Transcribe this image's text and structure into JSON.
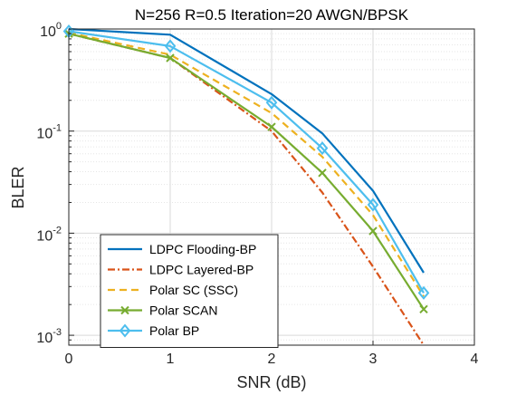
{
  "chart_data": {
    "type": "line",
    "title": "N=256 R=0.5 Iteration=20 AWGN/BPSK",
    "xlabel": "SNR (dB)",
    "ylabel": "BLER",
    "xlim": [
      0,
      4
    ],
    "ylim": [
      0.0008,
      1
    ],
    "yscale": "log",
    "grid": true,
    "legend_position": "bottom-left",
    "x_ticks": [
      {
        "value": 0,
        "label": "0"
      },
      {
        "value": 1,
        "label": "1"
      },
      {
        "value": 2,
        "label": "2"
      },
      {
        "value": 3,
        "label": "3"
      },
      {
        "value": 4,
        "label": "4"
      }
    ],
    "y_ticks": [
      {
        "value": 1,
        "base": "10",
        "exp": "0"
      },
      {
        "value": 0.1,
        "base": "10",
        "exp": "-1"
      },
      {
        "value": 0.01,
        "base": "10",
        "exp": "-2"
      },
      {
        "value": 0.001,
        "base": "10",
        "exp": "-3"
      }
    ],
    "series": [
      {
        "name": "LDPC Flooding-BP",
        "color": "#0072BD",
        "dash": "solid",
        "marker": "none",
        "x": [
          0,
          1,
          2,
          2.5,
          3,
          3.5
        ],
        "y": [
          1.0,
          0.88,
          0.23,
          0.095,
          0.026,
          0.0041
        ]
      },
      {
        "name": "LDPC Layered-BP",
        "color": "#D95319",
        "dash": "dashdot",
        "marker": "none",
        "x": [
          0,
          1,
          2,
          2.5,
          3,
          3.5
        ],
        "y": [
          0.9,
          0.52,
          0.1,
          0.025,
          0.0047,
          0.0008
        ]
      },
      {
        "name": "Polar SC (SSC)",
        "color": "#EDB120",
        "dash": "dashed",
        "marker": "none",
        "x": [
          0,
          1,
          2,
          2.5,
          3,
          3.5
        ],
        "y": [
          0.92,
          0.56,
          0.15,
          0.056,
          0.015,
          0.0024
        ]
      },
      {
        "name": "Polar SCAN",
        "color": "#77AC30",
        "dash": "solid",
        "marker": "x",
        "x": [
          0,
          1,
          2,
          2.5,
          3,
          3.5
        ],
        "y": [
          0.9,
          0.52,
          0.11,
          0.039,
          0.0105,
          0.0018
        ]
      },
      {
        "name": "Polar BP",
        "color": "#4DBEEE",
        "dash": "solid",
        "marker": "diamond",
        "x": [
          0,
          1,
          2,
          2.5,
          3,
          3.5
        ],
        "y": [
          0.95,
          0.68,
          0.19,
          0.068,
          0.019,
          0.0026
        ]
      }
    ]
  }
}
